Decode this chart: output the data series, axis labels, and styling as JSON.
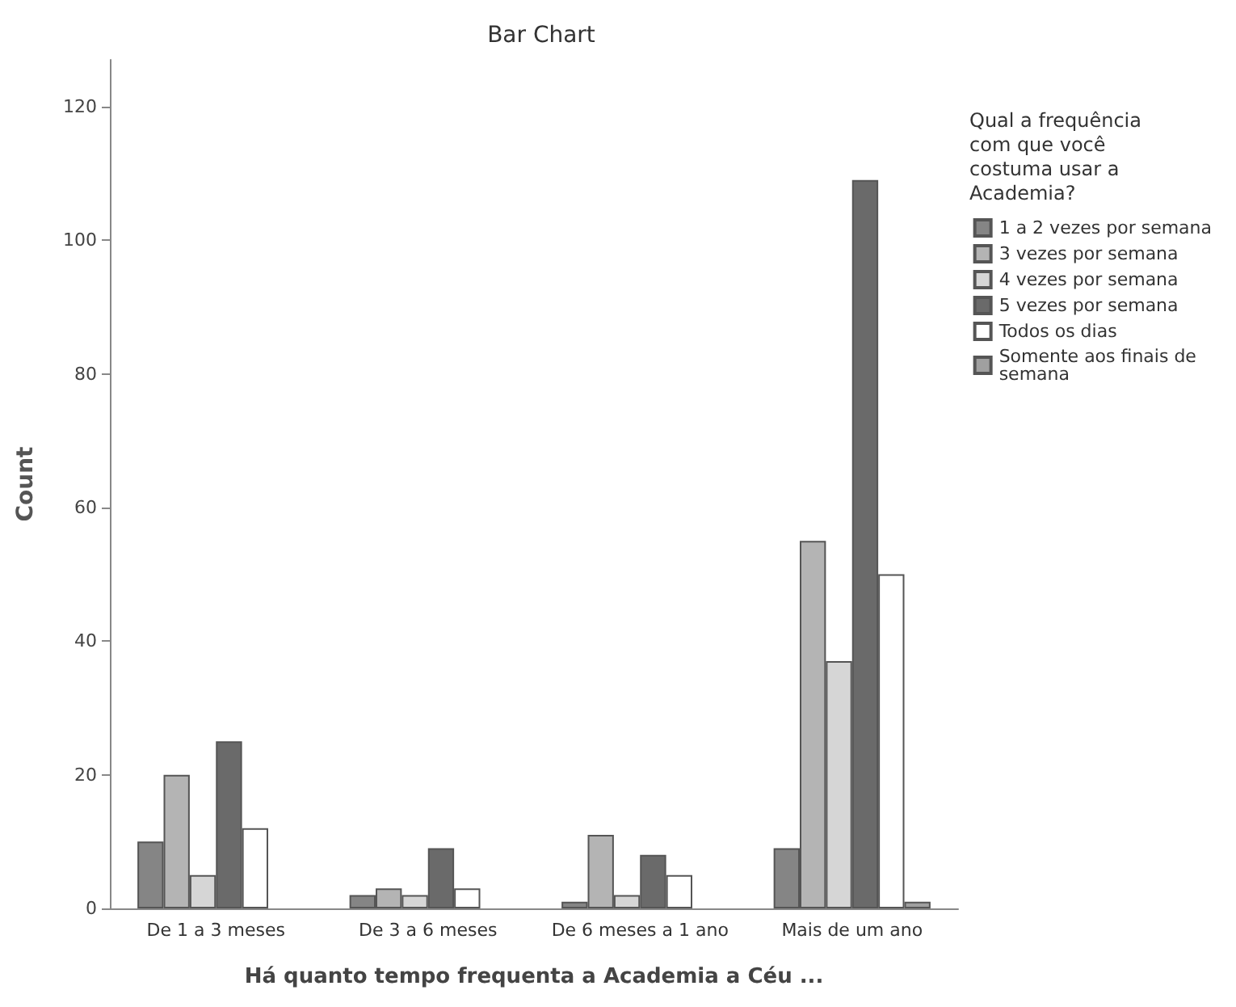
{
  "chart_data": {
    "type": "bar",
    "title": "Bar Chart",
    "xlabel": "Há quanto tempo frequenta a Academia a Céu ...",
    "ylabel": "Count",
    "legend_title": "Qual a frequência com que você costuma usar a Academia?",
    "categories": [
      "De 1 a 3 meses",
      "De 3 a 6 meses",
      "De 6 meses a 1 ano",
      "Mais de um ano"
    ],
    "series": [
      {
        "name": "1 a 2 vezes por semana",
        "color": "#858585",
        "values": [
          10,
          2,
          1,
          9
        ]
      },
      {
        "name": "3 vezes por semana",
        "color": "#b4b4b4",
        "values": [
          20,
          3,
          11,
          55
        ]
      },
      {
        "name": "4 vezes por semana",
        "color": "#d6d6d6",
        "values": [
          5,
          2,
          2,
          37
        ]
      },
      {
        "name": "5 vezes por semana",
        "color": "#6a6a6a",
        "values": [
          25,
          9,
          8,
          109
        ]
      },
      {
        "name": "Todos os dias",
        "color": "#ffffff",
        "values": [
          12,
          3,
          5,
          50
        ]
      },
      {
        "name": "Somente aos finais de semana",
        "color": "#a0a0a0",
        "values": [
          0,
          0,
          0,
          1
        ]
      }
    ],
    "ylim": [
      0,
      127
    ],
    "yticks": [
      0,
      20,
      40,
      60,
      80,
      100,
      120
    ],
    "grid": false,
    "legend": "right"
  }
}
